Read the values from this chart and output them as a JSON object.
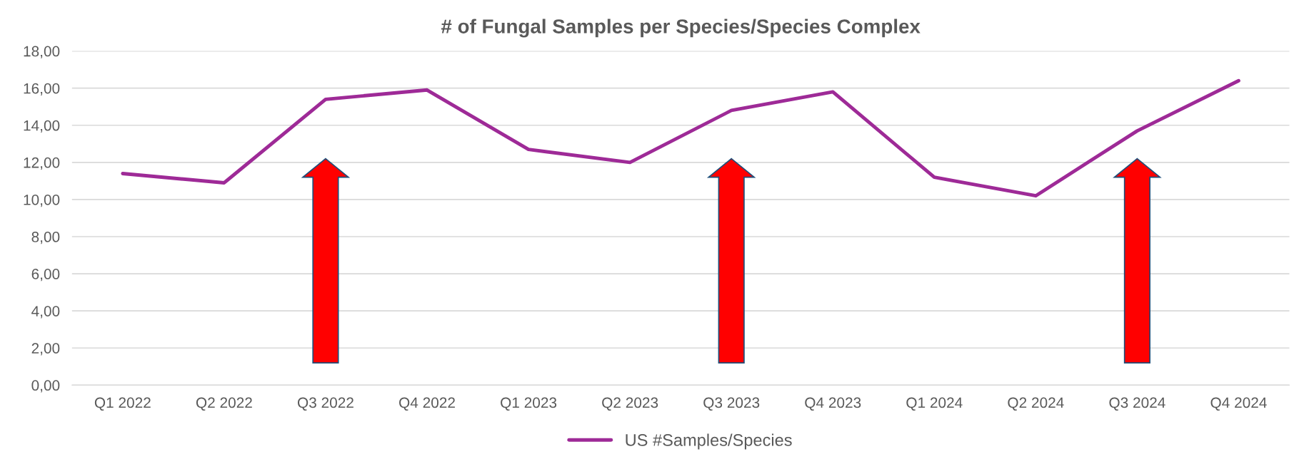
{
  "chart_data": {
    "type": "line",
    "title": "# of Fungal Samples per Species/Species Complex",
    "categories": [
      "Q1 2022",
      "Q2 2022",
      "Q3 2022",
      "Q4 2022",
      "Q1 2023",
      "Q2 2023",
      "Q3 2023",
      "Q4 2023",
      "Q1 2024",
      "Q2 2024",
      "Q3 2024",
      "Q4 2024"
    ],
    "series": [
      {
        "name": "US #Samples/Species",
        "color": "#9e2a97",
        "values": [
          11.4,
          10.9,
          15.4,
          15.9,
          12.7,
          12.0,
          14.8,
          15.8,
          11.2,
          10.2,
          13.7,
          16.4
        ]
      }
    ],
    "ylim": [
      0,
      18
    ],
    "yticks": [
      {
        "value": 0,
        "label": "0,00"
      },
      {
        "value": 2,
        "label": "2,00"
      },
      {
        "value": 4,
        "label": "4,00"
      },
      {
        "value": 6,
        "label": "6,00"
      },
      {
        "value": 8,
        "label": "8,00"
      },
      {
        "value": 10,
        "label": "10,00"
      },
      {
        "value": 12,
        "label": "12,00"
      },
      {
        "value": 14,
        "label": "14,00"
      },
      {
        "value": 16,
        "label": "16,00"
      },
      {
        "value": 18,
        "label": "18,00"
      }
    ],
    "grid": "y",
    "legend": "bottom",
    "marker": "none",
    "line_style": "solid"
  }
}
